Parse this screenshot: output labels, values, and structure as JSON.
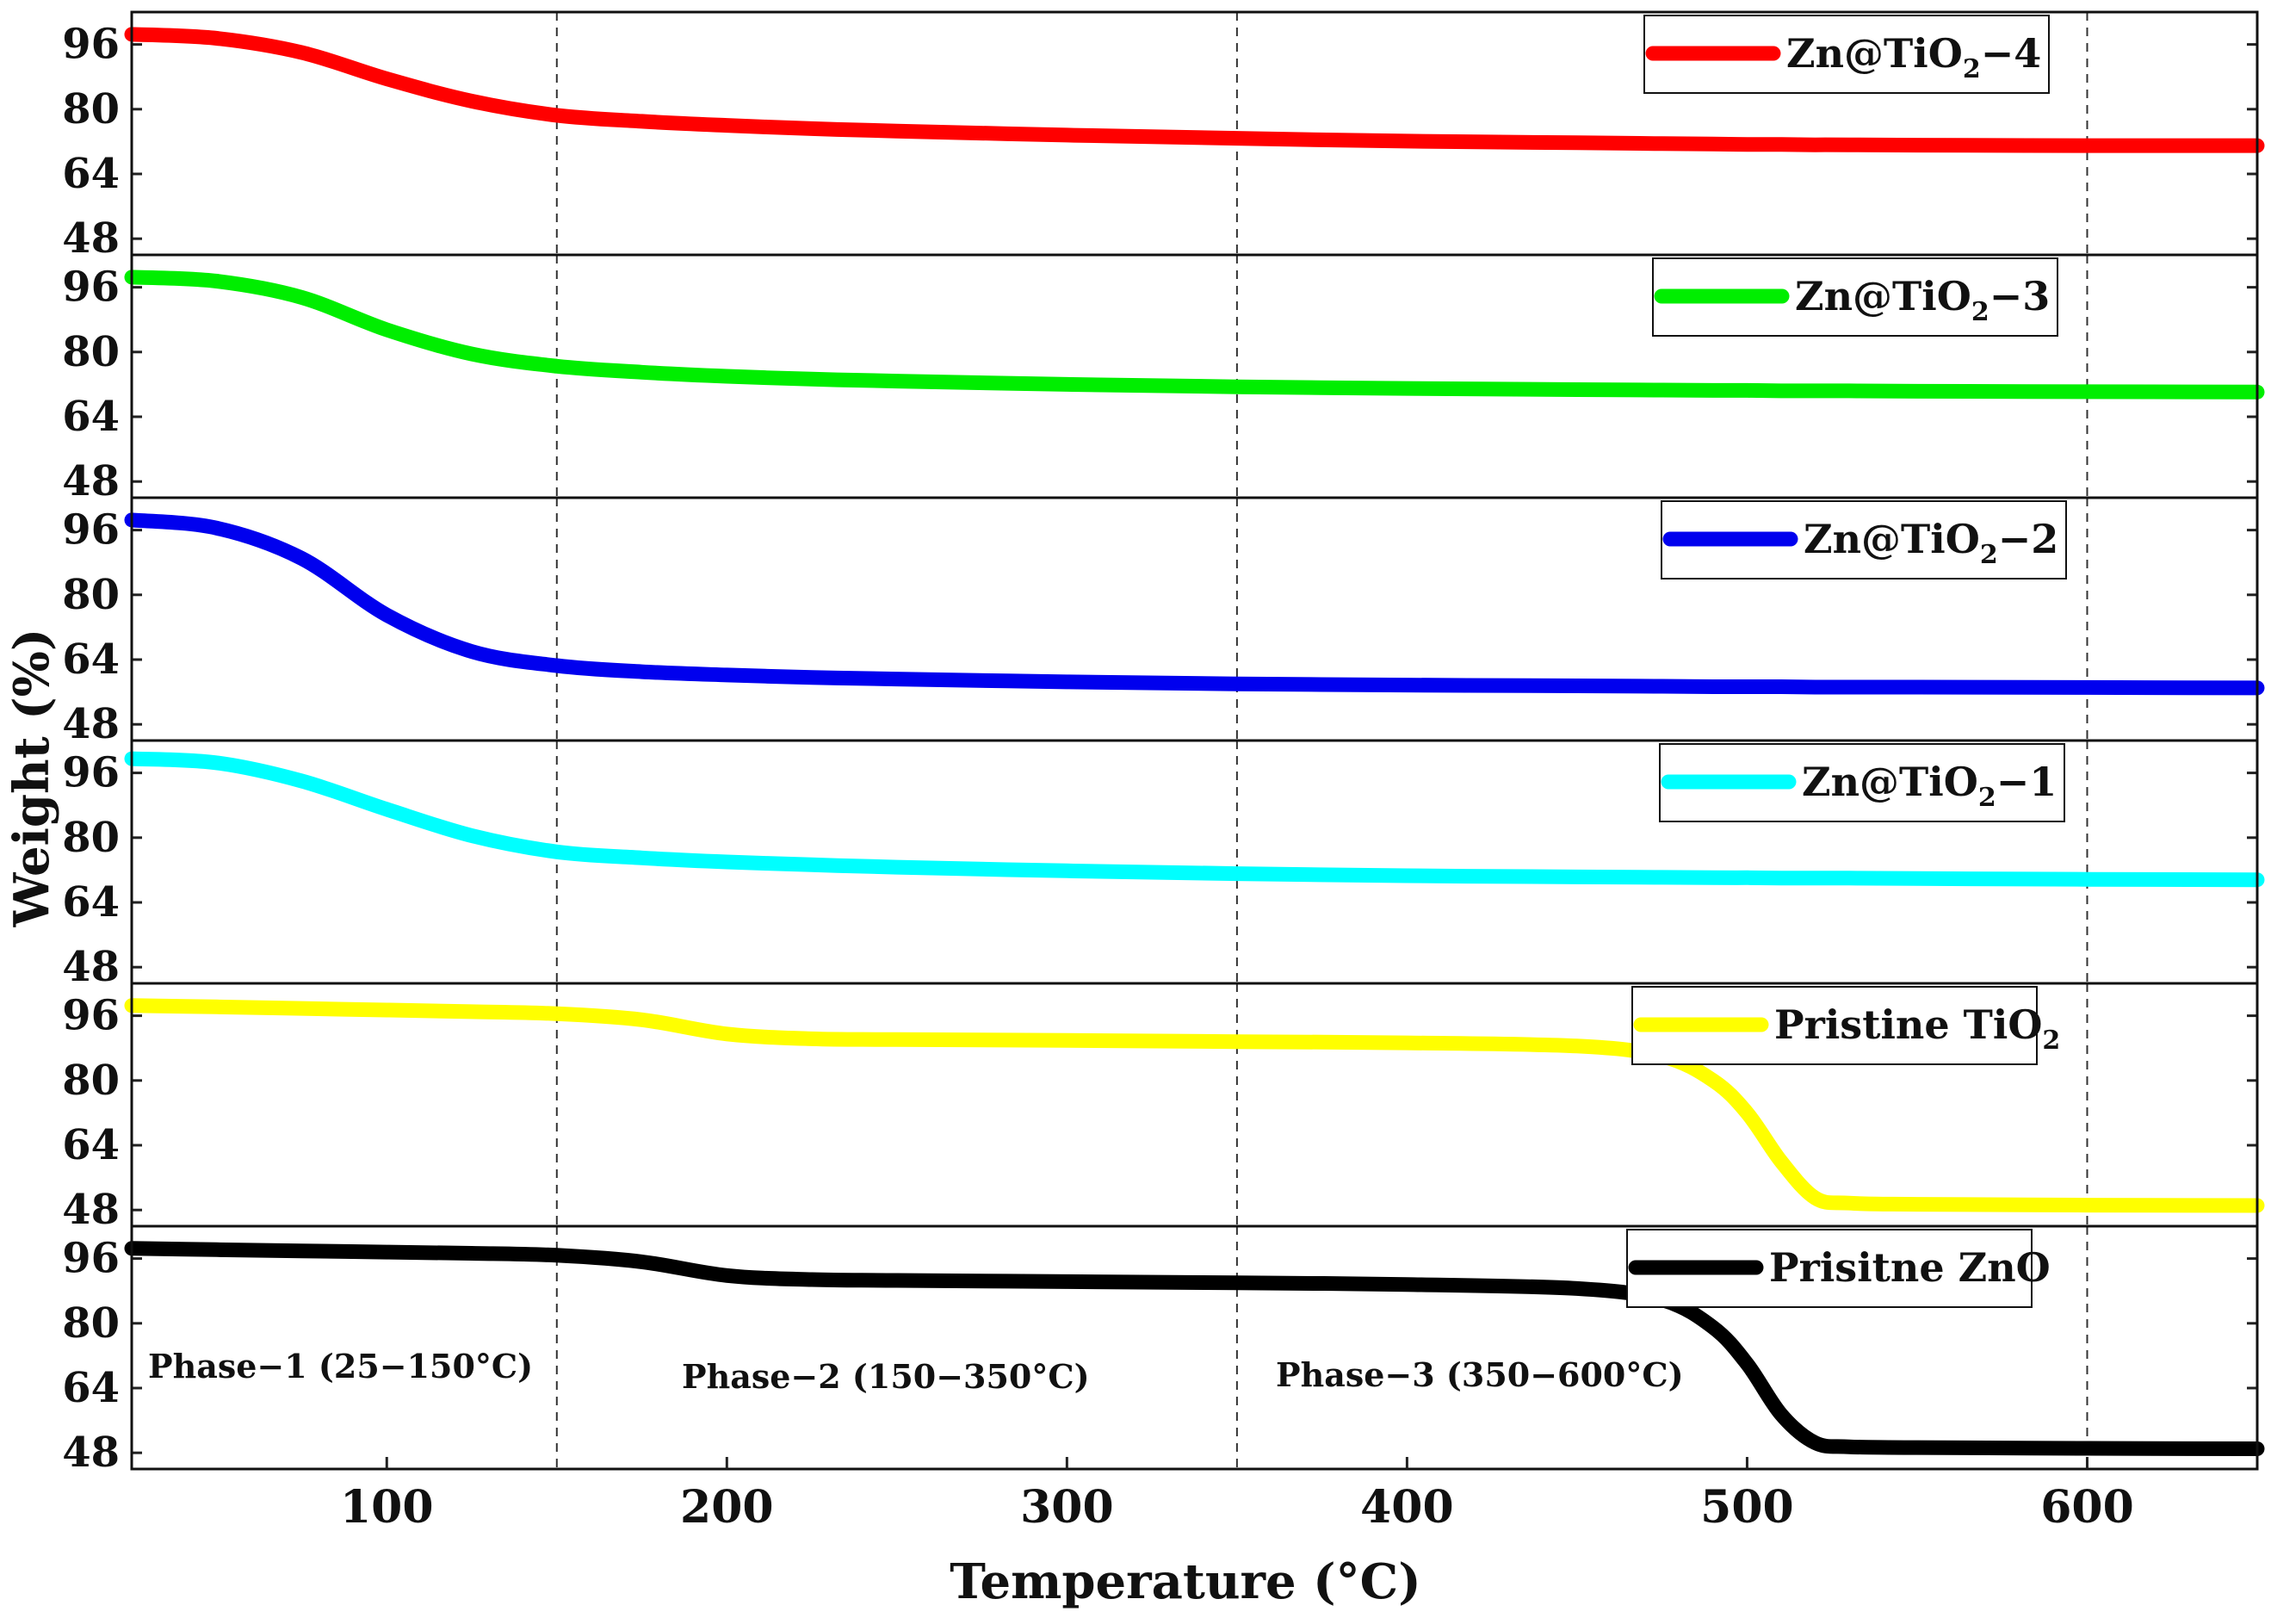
{
  "chart_data": {
    "type": "line",
    "title": "",
    "xlabel": "Temperature (°C)",
    "ylabel": "Weight (%)",
    "xlim": [
      25,
      650
    ],
    "ylim": [
      44,
      104
    ],
    "xticks": [
      100,
      200,
      300,
      400,
      500,
      600
    ],
    "yticks": [
      48,
      64,
      80,
      96
    ],
    "phase_lines": [
      150,
      350,
      600
    ],
    "phase_labels": [
      "Phase−1 (25−150°C)",
      "Phase−2 (150−350°C)",
      "Phase−3 (350−600°C)"
    ],
    "x": [
      25,
      50,
      75,
      100,
      125,
      150,
      175,
      200,
      225,
      250,
      300,
      350,
      400,
      450,
      475,
      490,
      500,
      510,
      520,
      530,
      550,
      600,
      650
    ],
    "series": [
      {
        "name": "Zn@TiO2−4",
        "label_main": "Zn@TiO",
        "label_sub": "2",
        "label_tail": "−4",
        "color": "#ff0000",
        "values": [
          98.5,
          97.5,
          94,
          87.5,
          82,
          78.5,
          77,
          76,
          75.2,
          74.6,
          73.6,
          72.8,
          72.1,
          71.7,
          71.5,
          71.4,
          71.3,
          71.3,
          71.2,
          71.2,
          71.1,
          71.0,
          71.0
        ]
      },
      {
        "name": "Zn@TiO2−3",
        "label_main": "Zn@TiO",
        "label_sub": "2",
        "label_tail": "−3",
        "color": "#00ee00",
        "values": [
          98.5,
          97.5,
          93.5,
          85.5,
          79.5,
          76.5,
          75,
          74,
          73.3,
          72.8,
          72,
          71.4,
          71,
          70.7,
          70.6,
          70.5,
          70.5,
          70.4,
          70.4,
          70.4,
          70.3,
          70.2,
          70.1
        ]
      },
      {
        "name": "Zn@TiO2−2",
        "label_main": "Zn@TiO",
        "label_sub": "2",
        "label_tail": "−2",
        "color": "#0000ee",
        "values": [
          98.5,
          96.5,
          89,
          75,
          66,
          62.5,
          61,
          60.2,
          59.6,
          59.2,
          58.5,
          58,
          57.7,
          57.5,
          57.4,
          57.3,
          57.3,
          57.3,
          57.2,
          57.2,
          57.2,
          57.1,
          57.0
        ]
      },
      {
        "name": "Zn@TiO2−1",
        "label_main": "Zn@TiO",
        "label_sub": "2",
        "label_tail": "−1",
        "color": "#00ffff",
        "values": [
          99.5,
          98.5,
          94,
          87,
          80.5,
          76.5,
          75,
          74,
          73.3,
          72.7,
          71.8,
          71.1,
          70.6,
          70.3,
          70.2,
          70.1,
          70.1,
          70.0,
          70.0,
          70.0,
          69.9,
          69.7,
          69.6
        ]
      },
      {
        "name": "Pristine TiO2",
        "label_main": "Pristine TiO",
        "label_sub": "2",
        "label_tail": "",
        "color": "#ffff00",
        "values": [
          98.5,
          98.2,
          97.8,
          97.4,
          97,
          96.5,
          95,
          91.5,
          90.3,
          90.1,
          89.9,
          89.6,
          89.3,
          88.5,
          86,
          80,
          72,
          60,
          51,
          49.7,
          49.4,
          49.2,
          49.1
        ]
      },
      {
        "name": "Prisitne ZnO",
        "label_main": "Prisitne ZnO",
        "label_sub": "",
        "label_tail": "",
        "color": "#000000",
        "values": [
          98.5,
          98.2,
          97.9,
          97.6,
          97.3,
          96.8,
          95.2,
          91.8,
          90.8,
          90.6,
          90.3,
          90,
          89.6,
          88.6,
          85.8,
          79,
          70,
          57.5,
          50.5,
          49.5,
          49.3,
          49.1,
          49.0
        ]
      }
    ]
  }
}
